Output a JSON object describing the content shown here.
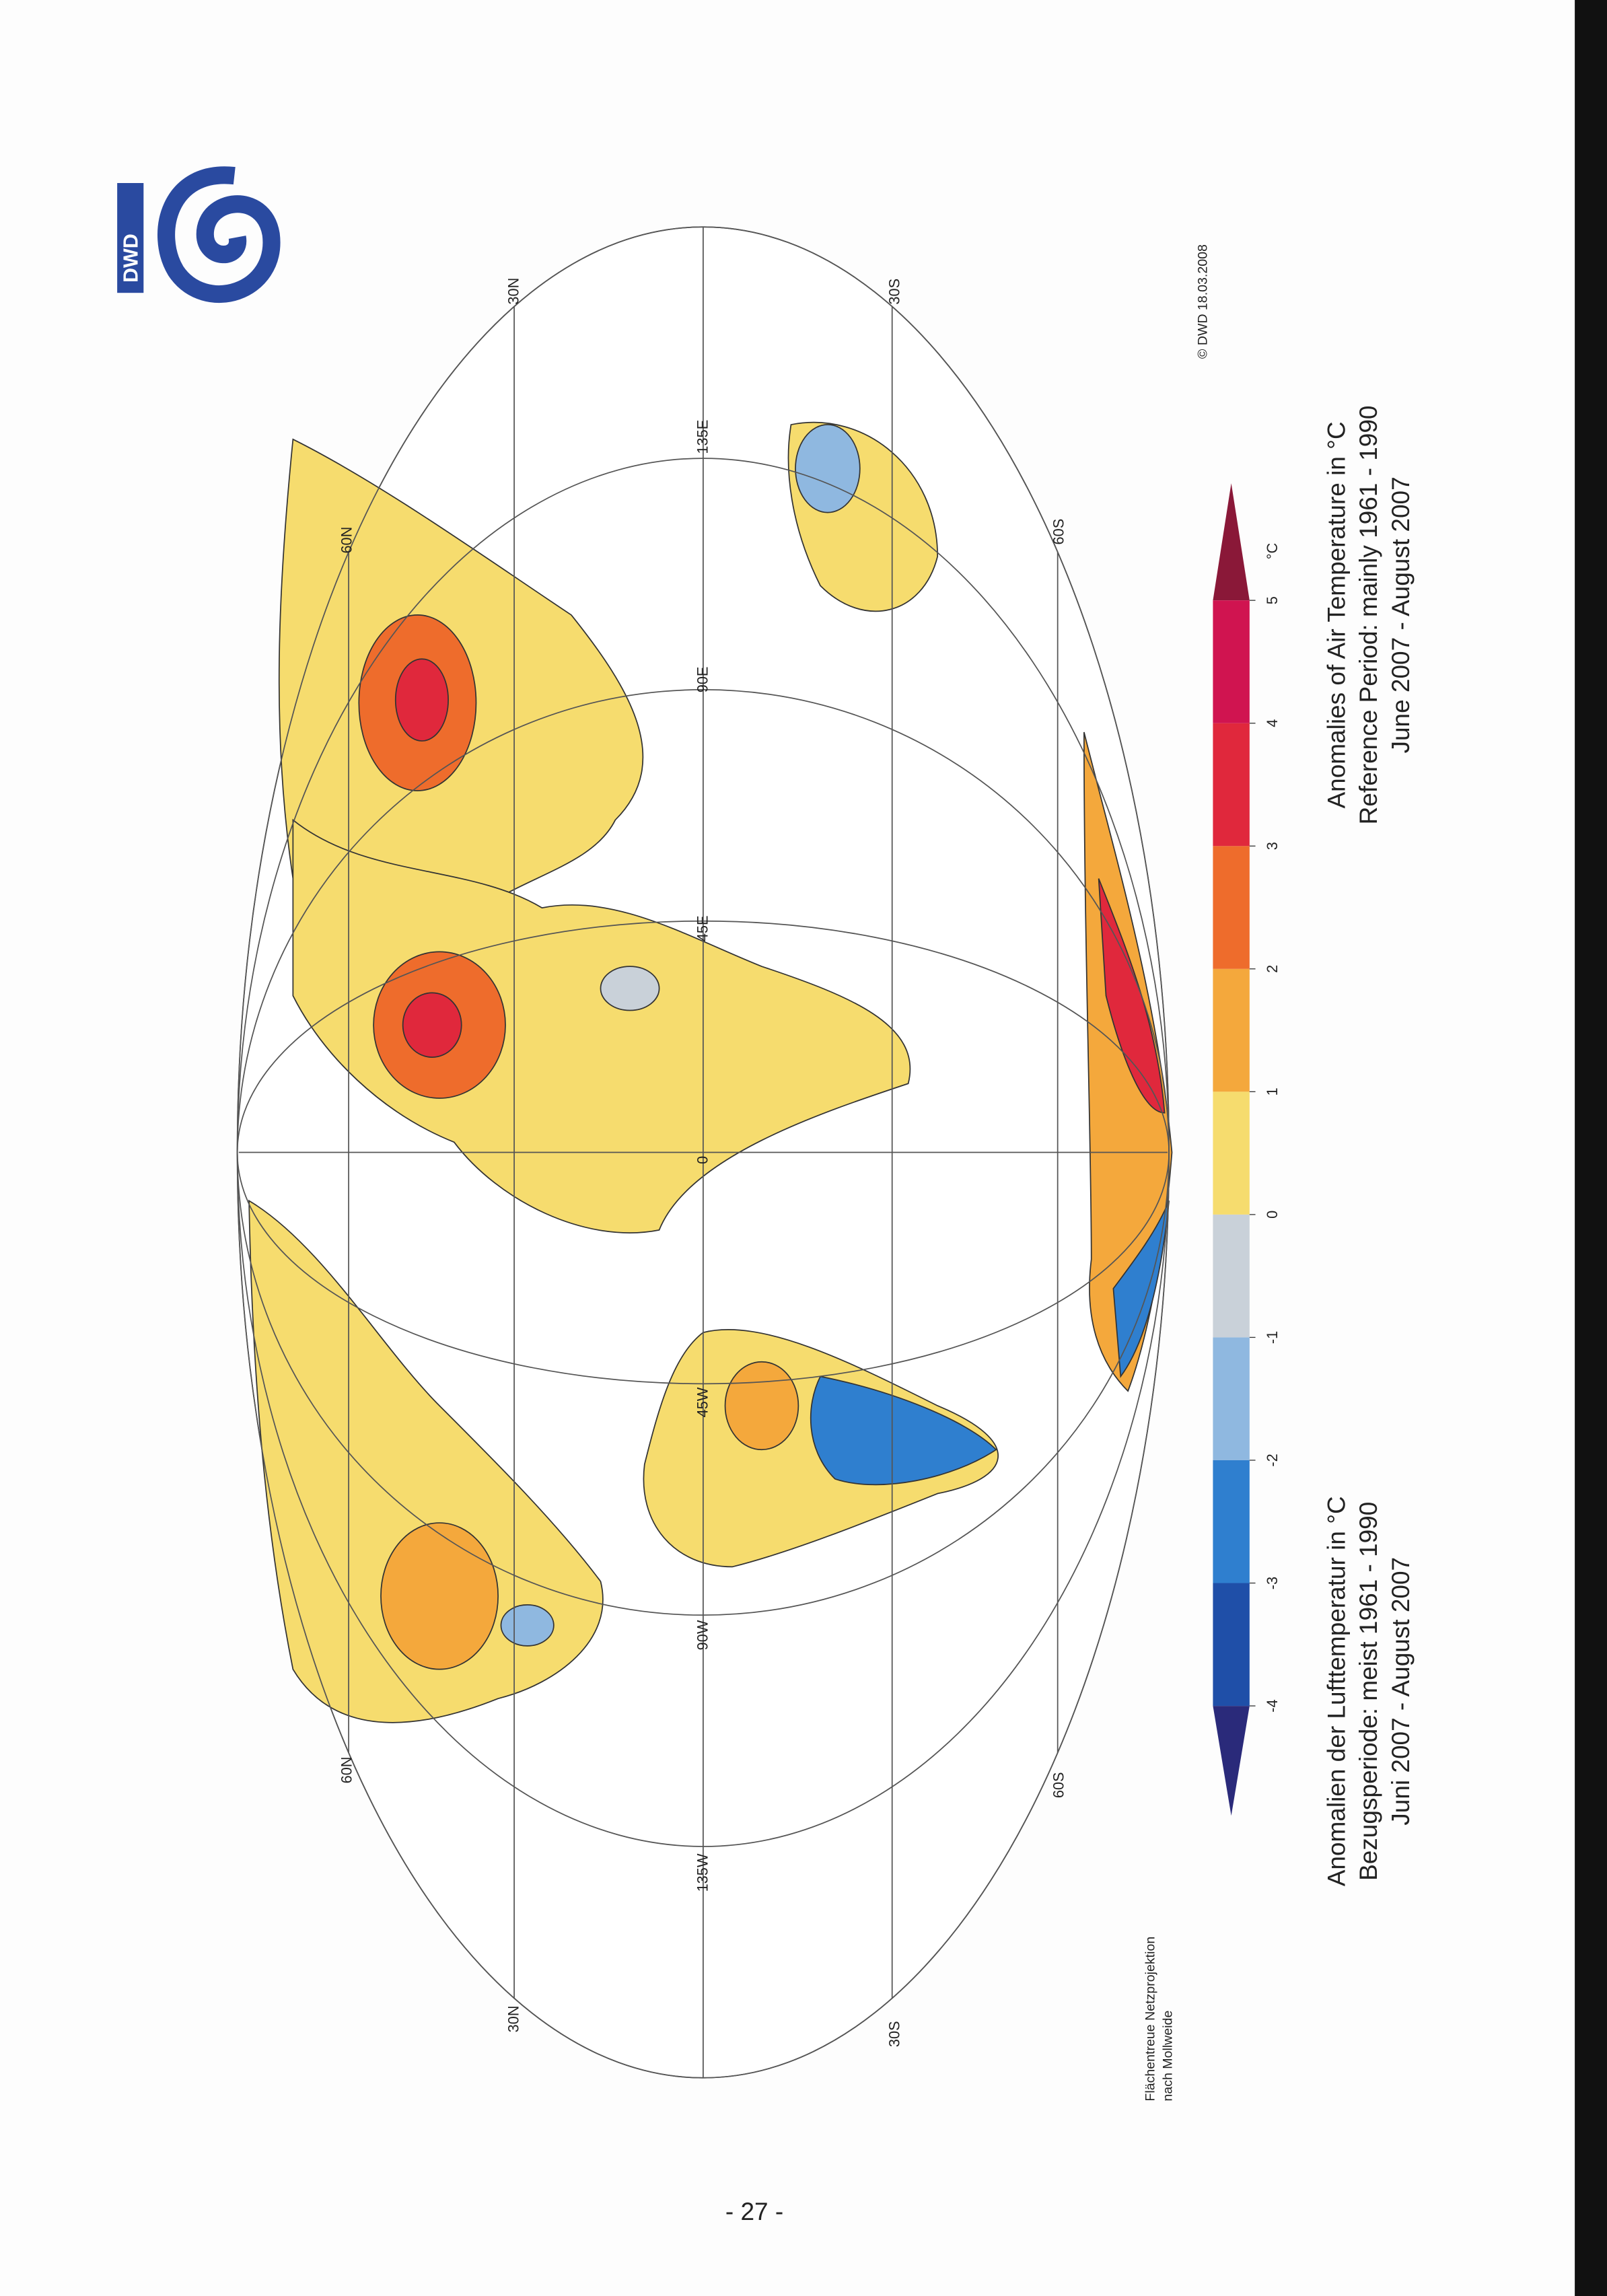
{
  "logo": "DWD",
  "projection": [
    "Flächentreue Netzprojektion",
    "nach Mollweide"
  ],
  "copyright": "© DWD 18.03.2008",
  "grid": {
    "lat_labels": [
      "30N",
      "60N",
      "30S",
      "60S"
    ],
    "lon_labels": [
      "135W",
      "90W",
      "45W",
      "0",
      "45E",
      "90E",
      "135E"
    ]
  },
  "legend": {
    "unit": "°C",
    "ticks": [
      -4,
      -3,
      -2,
      -1,
      0,
      1,
      2,
      3,
      4,
      5
    ],
    "colors": [
      "#2a2a7a",
      "#1f4fa8",
      "#2f7fcf",
      "#8fb8e0",
      "#c9d1d9",
      "#f6dc6e",
      "#f4a83c",
      "#ee6c2c",
      "#e0283c",
      "#d01450",
      "#8a1838"
    ]
  },
  "title_de": [
    "Anomalien der Lufttemperatur in °C",
    "Bezugsperiode: meist 1961 - 1990",
    "Juni 2007 - August 2007"
  ],
  "title_en": [
    "Anomalies of Air Temperature in °C",
    "Reference Period: mainly 1961 - 1990",
    "June 2007 - August 2007"
  ],
  "page_number": "- 27 -"
}
